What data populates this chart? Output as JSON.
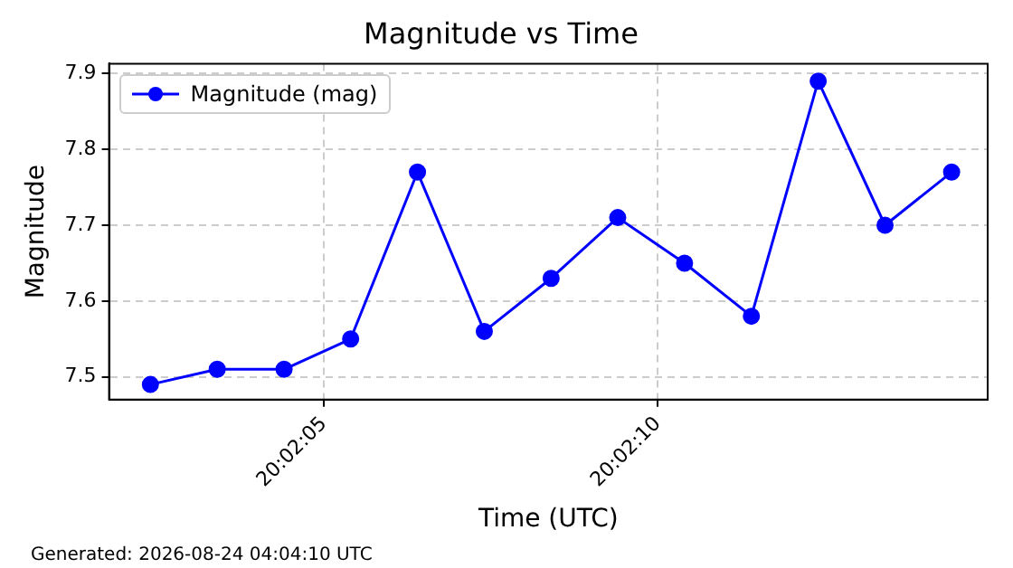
{
  "chart_data": {
    "type": "line",
    "title": "Magnitude vs Time",
    "xlabel": "Time (UTC)",
    "ylabel": "Magnitude",
    "x": [
      20.034,
      20.034278,
      20.034556,
      20.034833,
      20.035111,
      20.035389,
      20.035667,
      20.035944,
      20.036222,
      20.0365,
      20.036778,
      20.037056,
      20.037333
    ],
    "series": [
      {
        "name": "Magnitude (mag)",
        "color": "#0000ff",
        "values": [
          7.49,
          7.51,
          7.51,
          7.55,
          7.77,
          7.56,
          7.63,
          7.71,
          7.65,
          7.58,
          7.89,
          7.7,
          7.77
        ]
      }
    ],
    "xlim": [
      20.033828,
      20.037483
    ],
    "xticks": [
      {
        "value": 20.034722,
        "label": "20:02:05"
      },
      {
        "value": 20.036111,
        "label": "20:02:10"
      }
    ],
    "ylim": [
      7.47,
      7.913
    ],
    "yticks": [
      7.5,
      7.6,
      7.7,
      7.8,
      7.9
    ],
    "grid": true,
    "legend": "top left",
    "marker": "circle",
    "line_style": "solid",
    "annotations": [
      "Generated: 2026-08-24 04:04:10 UTC"
    ]
  }
}
